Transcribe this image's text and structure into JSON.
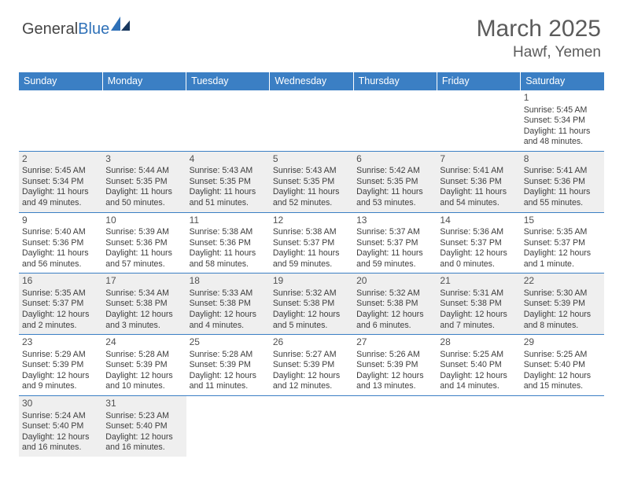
{
  "logo": {
    "general": "General",
    "blue": "Blue"
  },
  "title": "March 2025",
  "location": "Hawf, Yemen",
  "columns": [
    "Sunday",
    "Monday",
    "Tuesday",
    "Wednesday",
    "Thursday",
    "Friday",
    "Saturday"
  ],
  "colors": {
    "header_bg": "#3b7fc4",
    "header_text": "#ffffff",
    "cell_border": "#3b7fc4",
    "shaded_bg": "#efefef",
    "text": "#3d3d3d",
    "logo_blue": "#2f71b8"
  },
  "weeks": [
    [
      {
        "blank": true
      },
      {
        "blank": true
      },
      {
        "blank": true
      },
      {
        "blank": true
      },
      {
        "blank": true
      },
      {
        "blank": true
      },
      {
        "day": "1",
        "sunrise": "Sunrise: 5:45 AM",
        "sunset": "Sunset: 5:34 PM",
        "daylight": "Daylight: 11 hours and 48 minutes."
      }
    ],
    [
      {
        "day": "2",
        "shaded": true,
        "sunrise": "Sunrise: 5:45 AM",
        "sunset": "Sunset: 5:34 PM",
        "daylight": "Daylight: 11 hours and 49 minutes."
      },
      {
        "day": "3",
        "shaded": true,
        "sunrise": "Sunrise: 5:44 AM",
        "sunset": "Sunset: 5:35 PM",
        "daylight": "Daylight: 11 hours and 50 minutes."
      },
      {
        "day": "4",
        "shaded": true,
        "sunrise": "Sunrise: 5:43 AM",
        "sunset": "Sunset: 5:35 PM",
        "daylight": "Daylight: 11 hours and 51 minutes."
      },
      {
        "day": "5",
        "shaded": true,
        "sunrise": "Sunrise: 5:43 AM",
        "sunset": "Sunset: 5:35 PM",
        "daylight": "Daylight: 11 hours and 52 minutes."
      },
      {
        "day": "6",
        "shaded": true,
        "sunrise": "Sunrise: 5:42 AM",
        "sunset": "Sunset: 5:35 PM",
        "daylight": "Daylight: 11 hours and 53 minutes."
      },
      {
        "day": "7",
        "shaded": true,
        "sunrise": "Sunrise: 5:41 AM",
        "sunset": "Sunset: 5:36 PM",
        "daylight": "Daylight: 11 hours and 54 minutes."
      },
      {
        "day": "8",
        "shaded": true,
        "sunrise": "Sunrise: 5:41 AM",
        "sunset": "Sunset: 5:36 PM",
        "daylight": "Daylight: 11 hours and 55 minutes."
      }
    ],
    [
      {
        "day": "9",
        "sunrise": "Sunrise: 5:40 AM",
        "sunset": "Sunset: 5:36 PM",
        "daylight": "Daylight: 11 hours and 56 minutes."
      },
      {
        "day": "10",
        "sunrise": "Sunrise: 5:39 AM",
        "sunset": "Sunset: 5:36 PM",
        "daylight": "Daylight: 11 hours and 57 minutes."
      },
      {
        "day": "11",
        "sunrise": "Sunrise: 5:38 AM",
        "sunset": "Sunset: 5:36 PM",
        "daylight": "Daylight: 11 hours and 58 minutes."
      },
      {
        "day": "12",
        "sunrise": "Sunrise: 5:38 AM",
        "sunset": "Sunset: 5:37 PM",
        "daylight": "Daylight: 11 hours and 59 minutes."
      },
      {
        "day": "13",
        "sunrise": "Sunrise: 5:37 AM",
        "sunset": "Sunset: 5:37 PM",
        "daylight": "Daylight: 11 hours and 59 minutes."
      },
      {
        "day": "14",
        "sunrise": "Sunrise: 5:36 AM",
        "sunset": "Sunset: 5:37 PM",
        "daylight": "Daylight: 12 hours and 0 minutes."
      },
      {
        "day": "15",
        "sunrise": "Sunrise: 5:35 AM",
        "sunset": "Sunset: 5:37 PM",
        "daylight": "Daylight: 12 hours and 1 minute."
      }
    ],
    [
      {
        "day": "16",
        "shaded": true,
        "sunrise": "Sunrise: 5:35 AM",
        "sunset": "Sunset: 5:37 PM",
        "daylight": "Daylight: 12 hours and 2 minutes."
      },
      {
        "day": "17",
        "shaded": true,
        "sunrise": "Sunrise: 5:34 AM",
        "sunset": "Sunset: 5:38 PM",
        "daylight": "Daylight: 12 hours and 3 minutes."
      },
      {
        "day": "18",
        "shaded": true,
        "sunrise": "Sunrise: 5:33 AM",
        "sunset": "Sunset: 5:38 PM",
        "daylight": "Daylight: 12 hours and 4 minutes."
      },
      {
        "day": "19",
        "shaded": true,
        "sunrise": "Sunrise: 5:32 AM",
        "sunset": "Sunset: 5:38 PM",
        "daylight": "Daylight: 12 hours and 5 minutes."
      },
      {
        "day": "20",
        "shaded": true,
        "sunrise": "Sunrise: 5:32 AM",
        "sunset": "Sunset: 5:38 PM",
        "daylight": "Daylight: 12 hours and 6 minutes."
      },
      {
        "day": "21",
        "shaded": true,
        "sunrise": "Sunrise: 5:31 AM",
        "sunset": "Sunset: 5:38 PM",
        "daylight": "Daylight: 12 hours and 7 minutes."
      },
      {
        "day": "22",
        "shaded": true,
        "sunrise": "Sunrise: 5:30 AM",
        "sunset": "Sunset: 5:39 PM",
        "daylight": "Daylight: 12 hours and 8 minutes."
      }
    ],
    [
      {
        "day": "23",
        "sunrise": "Sunrise: 5:29 AM",
        "sunset": "Sunset: 5:39 PM",
        "daylight": "Daylight: 12 hours and 9 minutes."
      },
      {
        "day": "24",
        "sunrise": "Sunrise: 5:28 AM",
        "sunset": "Sunset: 5:39 PM",
        "daylight": "Daylight: 12 hours and 10 minutes."
      },
      {
        "day": "25",
        "sunrise": "Sunrise: 5:28 AM",
        "sunset": "Sunset: 5:39 PM",
        "daylight": "Daylight: 12 hours and 11 minutes."
      },
      {
        "day": "26",
        "sunrise": "Sunrise: 5:27 AM",
        "sunset": "Sunset: 5:39 PM",
        "daylight": "Daylight: 12 hours and 12 minutes."
      },
      {
        "day": "27",
        "sunrise": "Sunrise: 5:26 AM",
        "sunset": "Sunset: 5:39 PM",
        "daylight": "Daylight: 12 hours and 13 minutes."
      },
      {
        "day": "28",
        "sunrise": "Sunrise: 5:25 AM",
        "sunset": "Sunset: 5:40 PM",
        "daylight": "Daylight: 12 hours and 14 minutes."
      },
      {
        "day": "29",
        "sunrise": "Sunrise: 5:25 AM",
        "sunset": "Sunset: 5:40 PM",
        "daylight": "Daylight: 12 hours and 15 minutes."
      }
    ],
    [
      {
        "day": "30",
        "shaded": true,
        "sunrise": "Sunrise: 5:24 AM",
        "sunset": "Sunset: 5:40 PM",
        "daylight": "Daylight: 12 hours and 16 minutes."
      },
      {
        "day": "31",
        "shaded": true,
        "sunrise": "Sunrise: 5:23 AM",
        "sunset": "Sunset: 5:40 PM",
        "daylight": "Daylight: 12 hours and 16 minutes."
      },
      {
        "blank": true
      },
      {
        "blank": true
      },
      {
        "blank": true
      },
      {
        "blank": true
      },
      {
        "blank": true
      }
    ]
  ]
}
